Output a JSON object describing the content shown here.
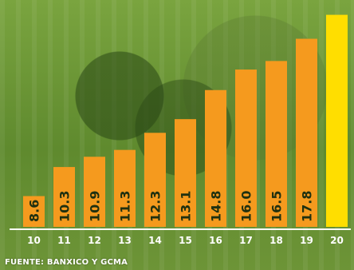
{
  "colors": {
    "bar": "#f59a1e",
    "highlight_bar": "#ffde00",
    "background": "#6f9a3a",
    "text": "#ffffff",
    "label_text": "#1f3010"
  },
  "source": "FUENTE: BANXICO Y GCMA",
  "chart_data": {
    "type": "bar",
    "title": "",
    "xlabel": "",
    "ylabel": "",
    "categories": [
      "10",
      "11",
      "12",
      "13",
      "14",
      "15",
      "16",
      "17",
      "18",
      "19",
      "20"
    ],
    "values": [
      8.6,
      10.3,
      10.9,
      11.3,
      12.3,
      13.1,
      14.8,
      16.0,
      16.5,
      17.8,
      19.2
    ],
    "data_labels": [
      "8.6",
      "10.3",
      "10.9",
      "11.3",
      "12.3",
      "13.1",
      "14.8",
      "16.0",
      "16.5",
      "17.8",
      ""
    ],
    "highlight_index": 10,
    "ylim": [
      6.8,
      19.6
    ],
    "grid": false
  }
}
